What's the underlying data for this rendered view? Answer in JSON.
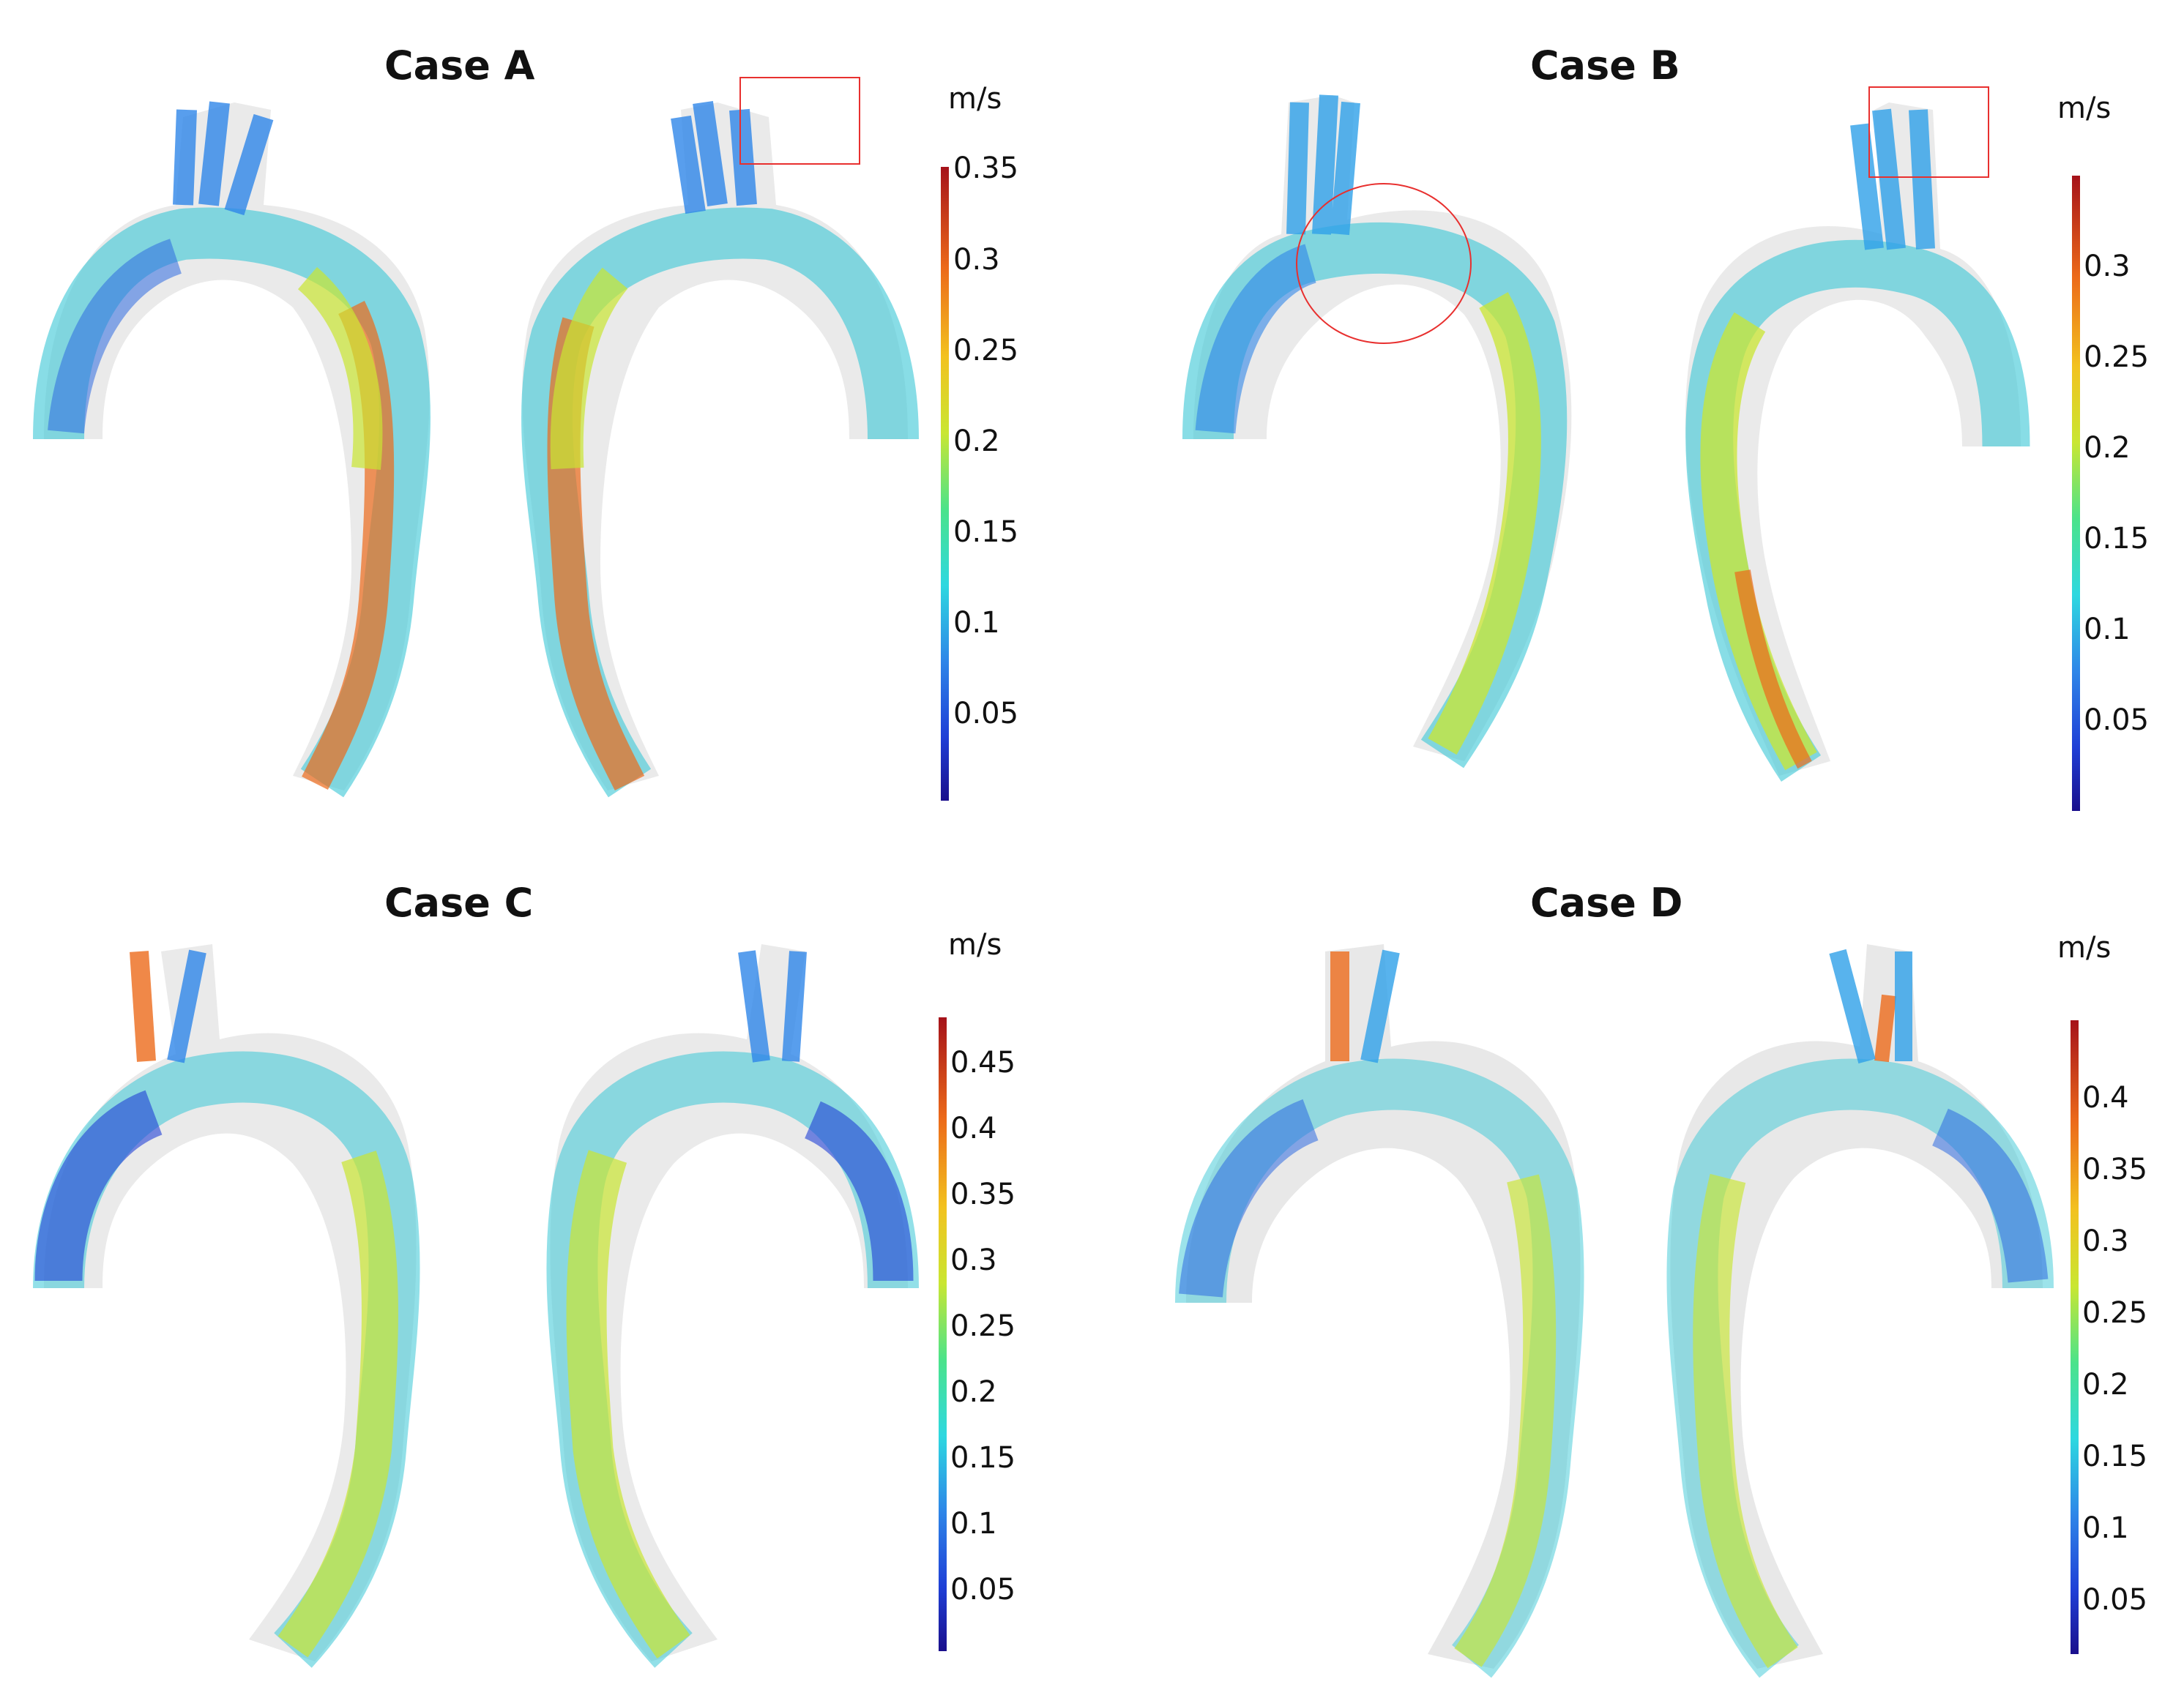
{
  "panels": [
    {
      "title": "Case A",
      "unit": "m/s",
      "colorbar_ticks": [
        "0.35",
        "0.3",
        "0.25",
        "0.2",
        "0.15",
        "0.1",
        "0.05"
      ]
    },
    {
      "title": "Case B",
      "unit": "m/s",
      "colorbar_ticks": [
        "0.3",
        "0.25",
        "0.2",
        "0.15",
        "0.1",
        "0.05"
      ]
    },
    {
      "title": "Case C",
      "unit": "m/s",
      "colorbar_ticks": [
        "0.45",
        "0.4",
        "0.35",
        "0.3",
        "0.25",
        "0.2",
        "0.15",
        "0.1",
        "0.05"
      ]
    },
    {
      "title": "Case D",
      "unit": "m/s",
      "colorbar_ticks": [
        "0.4",
        "0.35",
        "0.3",
        "0.25",
        "0.2",
        "0.15",
        "0.1",
        "0.05"
      ]
    }
  ],
  "colors": {
    "colormap": [
      "#1a0f8c",
      "#1f3fd6",
      "#2e86e8",
      "#2ed8e0",
      "#4be38a",
      "#c9e632",
      "#f2c21f",
      "#ec6a1a",
      "#a5121a"
    ],
    "vessel_wall": "#d4d4d4",
    "marker": "#e8302f"
  },
  "markers": {
    "case_a": "rectangle",
    "case_b": [
      "circle",
      "rectangle"
    ]
  }
}
